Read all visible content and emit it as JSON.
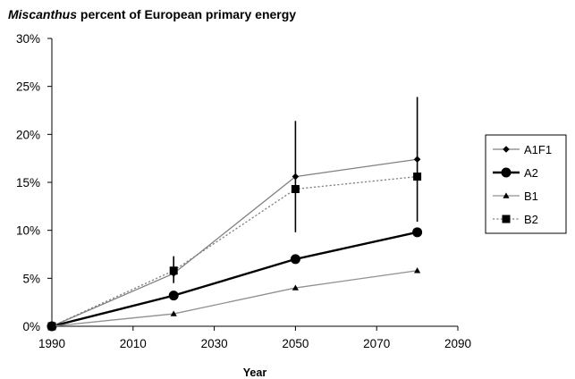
{
  "chart_data": {
    "type": "line",
    "title": {
      "italic_part": "Miscanthus",
      "rest": " percent of European primary energy"
    },
    "xlabel": "Year",
    "ylabel": "",
    "xlim": [
      1990,
      2090
    ],
    "ylim": [
      0,
      30
    ],
    "x_ticks": [
      1990,
      2010,
      2030,
      2050,
      2070,
      2090
    ],
    "y_ticks": [
      0,
      5,
      10,
      15,
      20,
      25,
      30
    ],
    "y_tick_labels": [
      "0%",
      "5%",
      "10%",
      "15%",
      "20%",
      "25%",
      "30%"
    ],
    "grid": false,
    "legend_position": "right",
    "x": [
      1990,
      2020,
      2050,
      2080
    ],
    "series": [
      {
        "name": "A1F1",
        "values": [
          0,
          5.5,
          15.6,
          17.4
        ],
        "marker": "diamond",
        "line_style": "solid",
        "line_weight": "thin",
        "color": "#808080"
      },
      {
        "name": "A2",
        "values": [
          0,
          3.2,
          7.0,
          9.8
        ],
        "marker": "circle",
        "line_style": "solid",
        "line_weight": "thick",
        "color": "#000000"
      },
      {
        "name": "B1",
        "values": [
          0,
          1.3,
          4.0,
          5.8
        ],
        "marker": "triangle",
        "line_style": "solid",
        "line_weight": "thin",
        "color": "#909090"
      },
      {
        "name": "B2",
        "values": [
          0,
          5.8,
          14.3,
          15.6
        ],
        "marker": "square",
        "line_style": "dotted",
        "line_weight": "thin",
        "color": "#808080"
      }
    ],
    "range_bars": [
      {
        "x": 2020,
        "low": 4.5,
        "high": 7.3
      },
      {
        "x": 2050,
        "low": 9.8,
        "high": 21.4
      },
      {
        "x": 2080,
        "low": 10.9,
        "high": 23.9
      }
    ]
  }
}
